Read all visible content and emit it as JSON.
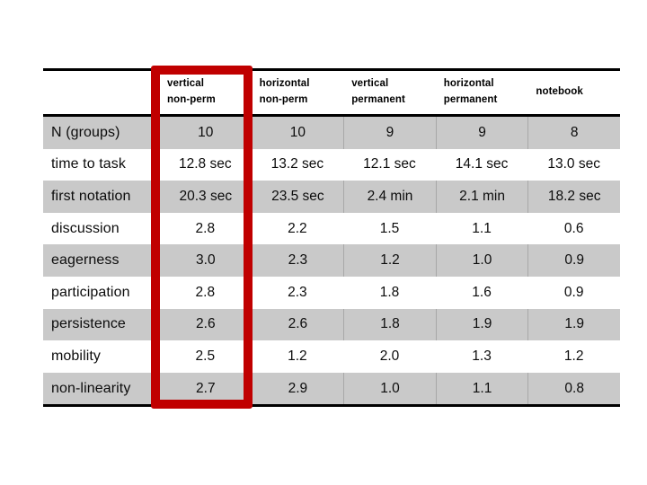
{
  "table": {
    "columns": [
      {
        "label": "vertical\nnon-perm"
      },
      {
        "label": "horizontal\nnon-perm"
      },
      {
        "label": "vertical\npermanent"
      },
      {
        "label": "horizontal\npermanent"
      },
      {
        "label": "notebook"
      }
    ],
    "rows": [
      {
        "label": "N (groups)",
        "values": [
          "10",
          "10",
          "9",
          "9",
          "8"
        ]
      },
      {
        "label": "time to task",
        "values": [
          "12.8 sec",
          "13.2 sec",
          "12.1 sec",
          "14.1 sec",
          "13.0 sec"
        ]
      },
      {
        "label": "first notation",
        "values": [
          "20.3 sec",
          "23.5 sec",
          "2.4 min",
          "2.1 min",
          "18.2 sec"
        ]
      },
      {
        "label": "discussion",
        "values": [
          "2.8",
          "2.2",
          "1.5",
          "1.1",
          "0.6"
        ]
      },
      {
        "label": "eagerness",
        "values": [
          "3.0",
          "2.3",
          "1.2",
          "1.0",
          "0.9"
        ]
      },
      {
        "label": "participation",
        "values": [
          "2.8",
          "2.3",
          "1.8",
          "1.6",
          "0.9"
        ]
      },
      {
        "label": "persistence",
        "values": [
          "2.6",
          "2.6",
          "1.8",
          "1.9",
          "1.9"
        ]
      },
      {
        "label": "mobility",
        "values": [
          "2.5",
          "1.2",
          "2.0",
          "1.3",
          "1.2"
        ]
      },
      {
        "label": "non-linearity",
        "values": [
          "2.7",
          "2.9",
          "1.0",
          "1.1",
          "0.8"
        ]
      }
    ],
    "style": {
      "band_color": "#c9c9c9",
      "divider_color": "#a8a8a8",
      "rule_color": "#000000",
      "background": "#ffffff"
    }
  },
  "highlight": {
    "target_column": "vertical non-perm",
    "color": "#c00000"
  }
}
